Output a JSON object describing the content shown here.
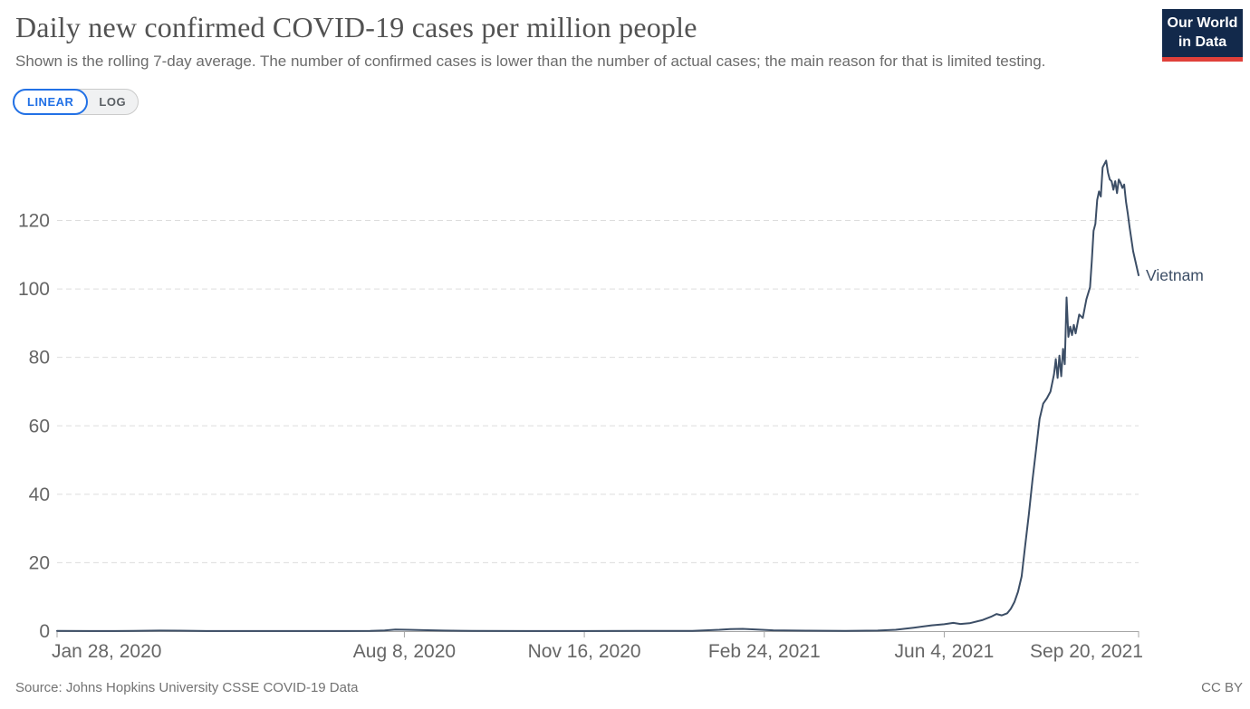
{
  "header": {
    "title": "Daily new confirmed COVID-19 cases per million people",
    "subtitle": "Shown is the rolling 7-day average. The number of confirmed cases is lower than the number of actual cases; the main reason for that is limited testing.",
    "logo_line1": "Our World",
    "logo_line2": "in Data"
  },
  "controls": {
    "linear_label": "LINEAR",
    "log_label": "LOG",
    "active_scale": "LINEAR"
  },
  "footer": {
    "source": "Source: Johns Hopkins University CSSE COVID-19 Data",
    "license": "CC BY"
  },
  "colors": {
    "line": "#3C4E66",
    "entity_label": "#3C4E66",
    "accent_blue": "#2271E6",
    "logo_navy": "#12294B",
    "logo_red": "#E0403A",
    "grid": "#DDDDDD",
    "axis": "#A5A5A5",
    "tick_text": "#666666"
  },
  "chart_data": {
    "type": "line",
    "title": "Daily new confirmed COVID-19 cases per million people",
    "entity": "Vietnam",
    "grid": true,
    "scale": "linear",
    "ylim": [
      0,
      142
    ],
    "y_ticks": [
      0,
      20,
      40,
      60,
      80,
      100,
      120
    ],
    "x_range": [
      "2020-01-28",
      "2021-09-20"
    ],
    "x_tick_dates": [
      "2020-01-28",
      "2020-08-08",
      "2020-11-16",
      "2021-02-24",
      "2021-06-04",
      "2021-09-20"
    ],
    "x_tick_labels": [
      "Jan 28, 2020",
      "Aug 8, 2020",
      "Nov 16, 2020",
      "Feb 24, 2021",
      "Jun 4, 2021",
      "Sep 20, 2021"
    ],
    "series": [
      {
        "name": "Vietnam",
        "points": [
          [
            "2020-01-28",
            0.05
          ],
          [
            "2020-02-15",
            0.02
          ],
          [
            "2020-03-10",
            0.05
          ],
          [
            "2020-03-25",
            0.15
          ],
          [
            "2020-04-05",
            0.12
          ],
          [
            "2020-04-20",
            0.03
          ],
          [
            "2020-05-15",
            0.02
          ],
          [
            "2020-06-15",
            0.02
          ],
          [
            "2020-07-20",
            0.05
          ],
          [
            "2020-07-28",
            0.2
          ],
          [
            "2020-08-03",
            0.45
          ],
          [
            "2020-08-10",
            0.4
          ],
          [
            "2020-08-18",
            0.3
          ],
          [
            "2020-08-30",
            0.15
          ],
          [
            "2020-09-15",
            0.05
          ],
          [
            "2020-10-15",
            0.03
          ],
          [
            "2020-11-16",
            0.03
          ],
          [
            "2020-12-15",
            0.05
          ],
          [
            "2021-01-15",
            0.05
          ],
          [
            "2021-01-30",
            0.4
          ],
          [
            "2021-02-05",
            0.6
          ],
          [
            "2021-02-12",
            0.65
          ],
          [
            "2021-02-20",
            0.45
          ],
          [
            "2021-03-01",
            0.25
          ],
          [
            "2021-03-20",
            0.12
          ],
          [
            "2021-04-10",
            0.08
          ],
          [
            "2021-04-28",
            0.15
          ],
          [
            "2021-05-08",
            0.4
          ],
          [
            "2021-05-18",
            1.0
          ],
          [
            "2021-05-28",
            1.7
          ],
          [
            "2021-06-04",
            2.0
          ],
          [
            "2021-06-09",
            2.4
          ],
          [
            "2021-06-13",
            2.1
          ],
          [
            "2021-06-18",
            2.3
          ],
          [
            "2021-06-25",
            3.2
          ],
          [
            "2021-06-30",
            4.2
          ],
          [
            "2021-07-03",
            5.0
          ],
          [
            "2021-07-06",
            4.6
          ],
          [
            "2021-07-09",
            5.2
          ],
          [
            "2021-07-11",
            6.5
          ],
          [
            "2021-07-13",
            8.5
          ],
          [
            "2021-07-15",
            11.5
          ],
          [
            "2021-07-17",
            16
          ],
          [
            "2021-07-19",
            25
          ],
          [
            "2021-07-21",
            34
          ],
          [
            "2021-07-23",
            44
          ],
          [
            "2021-07-25",
            53
          ],
          [
            "2021-07-27",
            62
          ],
          [
            "2021-07-29",
            66.5
          ],
          [
            "2021-07-31",
            68
          ],
          [
            "2021-08-02",
            70
          ],
          [
            "2021-08-04",
            75
          ],
          [
            "2021-08-05",
            79.5
          ],
          [
            "2021-08-06",
            74
          ],
          [
            "2021-08-07",
            80.5
          ],
          [
            "2021-08-08",
            74.5
          ],
          [
            "2021-08-09",
            82.5
          ],
          [
            "2021-08-10",
            78
          ],
          [
            "2021-08-11",
            97.5
          ],
          [
            "2021-08-12",
            86
          ],
          [
            "2021-08-13",
            89
          ],
          [
            "2021-08-14",
            86.5
          ],
          [
            "2021-08-15",
            89.5
          ],
          [
            "2021-08-16",
            87
          ],
          [
            "2021-08-18",
            92.5
          ],
          [
            "2021-08-20",
            91.5
          ],
          [
            "2021-08-22",
            97
          ],
          [
            "2021-08-24",
            100.5
          ],
          [
            "2021-08-25",
            108
          ],
          [
            "2021-08-26",
            117
          ],
          [
            "2021-08-27",
            119
          ],
          [
            "2021-08-28",
            126
          ],
          [
            "2021-08-29",
            128.5
          ],
          [
            "2021-08-30",
            127
          ],
          [
            "2021-08-31",
            135.5
          ],
          [
            "2021-09-02",
            137.5
          ],
          [
            "2021-09-03",
            134
          ],
          [
            "2021-09-04",
            132
          ],
          [
            "2021-09-05",
            131.5
          ],
          [
            "2021-09-06",
            129
          ],
          [
            "2021-09-07",
            131.5
          ],
          [
            "2021-09-08",
            128
          ],
          [
            "2021-09-09",
            132
          ],
          [
            "2021-09-10",
            131
          ],
          [
            "2021-09-11",
            129.5
          ],
          [
            "2021-09-12",
            130.5
          ],
          [
            "2021-09-13",
            125.5
          ],
          [
            "2021-09-14",
            122
          ],
          [
            "2021-09-15",
            118
          ],
          [
            "2021-09-17",
            111
          ],
          [
            "2021-09-20",
            104
          ]
        ]
      }
    ]
  }
}
